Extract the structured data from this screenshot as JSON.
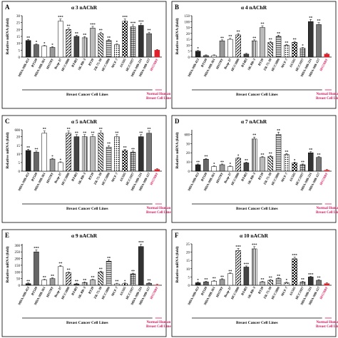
{
  "figure": {
    "xlabel": "Breast Cancer Cell Lines",
    "normal_label": "Normal Human Breast Cell Line",
    "ylabel": "Relative mRNA (fold)",
    "colors": {
      "frame": "#000000",
      "normal_bar": "#e0202a",
      "normal_text": "#d4145a"
    }
  },
  "chart_data": [
    {
      "panel": "A",
      "title": "α 3 nAChR",
      "type": "bar",
      "categories": [
        "MDA-MB-453",
        "BT549",
        "MDA-MB-361",
        "HS578T",
        "Bcap-37",
        "HCC1806",
        "BT483",
        "SK-BR-3",
        "BT20",
        "ZR-75-30",
        "HCC1806",
        "MCF-7",
        "AU565",
        "HCC1937",
        "MDA-MB-231",
        "MDA-MB-157",
        "HS578BT"
      ],
      "values": [
        12,
        9,
        8,
        7,
        26,
        20,
        15,
        14,
        21,
        17,
        12,
        9,
        26,
        22,
        23,
        17,
        5
      ],
      "sig": [
        "**",
        "*",
        "*",
        "*",
        "***",
        "**",
        "**",
        "**",
        "***",
        "**",
        "**",
        "*",
        "***",
        "***",
        "***",
        "**",
        ""
      ],
      "ylim": [
        0,
        30
      ],
      "yticks": [
        0,
        5,
        10,
        15,
        20,
        25,
        30
      ]
    },
    {
      "panel": "B",
      "title": "α 4 nAChR",
      "type": "bar",
      "categories": [
        "MDA-MB-453",
        "BT549",
        "MDA-MB-361",
        "HS578T",
        "Bcap-37",
        "HCC1806",
        "BT483",
        "SK-BR-3",
        "BT20",
        "ZR-75-30",
        "HCC1806",
        "MCF-7",
        "AU565",
        "HCC1937",
        "MDA-MB-231",
        "MDA-MB-157",
        "HS578BT"
      ],
      "values": [
        2,
        0.5,
        0.5,
        5.5,
        6,
        7.5,
        1,
        5.5,
        10,
        5,
        7,
        4,
        5,
        3,
        12,
        11,
        1
      ],
      "sig": [
        "*",
        "",
        "",
        "**",
        "**",
        "**",
        "",
        "**",
        "**",
        "**",
        "**",
        "**",
        "**",
        "*",
        "**",
        "**",
        ""
      ],
      "ylim": [
        0,
        14
      ],
      "yticks": [
        0,
        2,
        4,
        6,
        8,
        10,
        12,
        14
      ],
      "tick_labels": [
        "0",
        "5",
        "10",
        "15",
        "20",
        "50",
        "100",
        "150"
      ]
    },
    {
      "panel": "C",
      "title": "α 5 nAChR",
      "type": "bar",
      "categories": [
        "MDA-MB-453",
        "BT549",
        "MDA-MB-361",
        "HS578T",
        "Bcap-37",
        "HCC1806",
        "BT483",
        "SK-BR-3",
        "BT20",
        "ZR-75-30",
        "HCC1806",
        "MCF-7",
        "AU565",
        "HCC1937",
        "MDA-MB-231",
        "MDA-MB-157",
        "HS578BT"
      ],
      "values": [
        12,
        11,
        22,
        7,
        5,
        22,
        20,
        20,
        20,
        22,
        14,
        20,
        12,
        11,
        20,
        22,
        1
      ],
      "sig": [
        "**",
        "**",
        "**",
        "*",
        "*",
        "**",
        "**",
        "**",
        "**",
        "**",
        "**",
        "**",
        "**",
        "**",
        "**",
        "**",
        ""
      ],
      "ylim": [
        0,
        24
      ],
      "yticks": [
        0,
        5,
        10,
        15,
        20,
        24
      ],
      "tick_labels": [
        "0",
        "5",
        "10",
        "15",
        "20",
        "600"
      ]
    },
    {
      "panel": "D",
      "title": "α 7 nAChR",
      "type": "bar",
      "categories": [
        "MDA-MB-453",
        "BT549",
        "MDA-MB-361",
        "HS578T",
        "Bcap-37",
        "HCC1806",
        "BT483",
        "SK-BR-3",
        "BT20",
        "ZR-75-30",
        "HCC1806",
        "MCF-7",
        "AU565",
        "HCC1937",
        "MDA-MB-231",
        "MDA-MB-157",
        "HS578BT"
      ],
      "values": [
        7,
        13,
        5,
        7,
        5,
        14,
        9,
        35,
        15,
        16,
        40,
        18,
        9,
        7,
        20,
        15,
        1
      ],
      "sig": [
        "**",
        "**",
        "*",
        "**",
        "*",
        "*",
        "**",
        "**",
        "**",
        "**",
        "**",
        "**",
        "*",
        "**",
        "**",
        "**",
        ""
      ],
      "ylim": [
        0,
        45
      ],
      "yticks": [
        0,
        10,
        20,
        30,
        40
      ],
      "tick_labels": [
        "0",
        "10",
        "20",
        "30",
        "600"
      ]
    },
    {
      "panel": "E",
      "title": "α 9 nAChR",
      "type": "bar",
      "categories": [
        "MDA-MB-453",
        "BT549",
        "MDA-MB-361",
        "HS578T",
        "Bcap-37",
        "HCC1806",
        "BT483",
        "SK-BR-3",
        "BT20",
        "ZR-75-30",
        "HCC1806",
        "MCF-7",
        "AU565",
        "HCC1937",
        "MDA-MB-231",
        "MDA-MB-157",
        "HS578BT"
      ],
      "values": [
        12,
        250,
        40,
        50,
        140,
        95,
        10,
        20,
        40,
        100,
        180,
        10,
        12,
        85,
        290,
        15,
        2
      ],
      "sig": [
        "**",
        "***",
        "**",
        "**",
        "**",
        "**",
        "**",
        "**",
        "**",
        "**",
        "**",
        "**",
        "*",
        "**",
        "***",
        "**",
        ""
      ],
      "ylim": [
        0,
        310
      ],
      "yticks": [
        0,
        50,
        100,
        150,
        200,
        250,
        300
      ],
      "tick_labels": [
        "0",
        "50",
        "100",
        "150",
        "200",
        "250",
        "300"
      ]
    },
    {
      "panel": "F",
      "title": "α 10 nAChR",
      "type": "bar",
      "categories": [
        "MDA-MB-453",
        "BT549",
        "MDA-MB-361",
        "HS578T",
        "Bcap-37",
        "HCC1806",
        "BT483",
        "SK-BR-3",
        "BT20",
        "ZR-75-30",
        "HCC1806",
        "MCF-7",
        "AU565",
        "HCC1937",
        "MDA-MB-231",
        "MDA-MB-157",
        "HS578BT"
      ],
      "values": [
        1.5,
        2,
        2.5,
        3.5,
        7,
        21,
        11,
        22,
        2,
        3,
        4,
        1.5,
        16,
        2,
        5,
        3,
        1
      ],
      "sig": [
        "*",
        "**",
        "**",
        "**",
        "**",
        "***",
        "***",
        "***",
        "**",
        "**",
        "**",
        "*",
        "***",
        "**",
        "***",
        "**",
        ""
      ],
      "ylim": [
        0,
        25
      ],
      "yticks": [
        0,
        5,
        10,
        15,
        20,
        25
      ]
    }
  ]
}
